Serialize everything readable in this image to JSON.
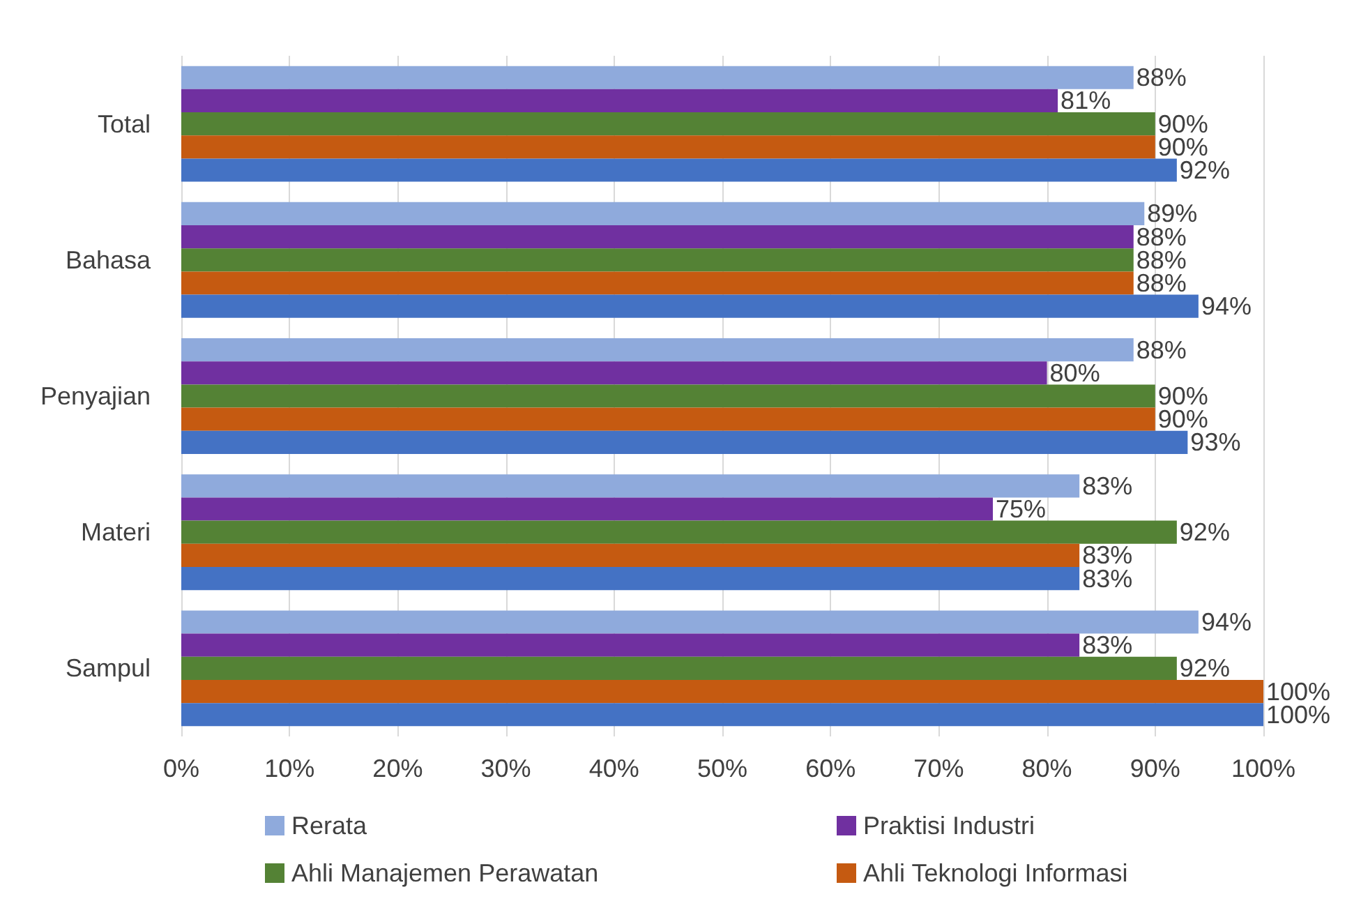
{
  "chart_data": {
    "type": "bar",
    "orientation": "horizontal",
    "categories": [
      "Total",
      "Bahasa",
      "Penyajian",
      "Materi",
      "Sampul"
    ],
    "series": [
      {
        "name": "Rerata",
        "color": "#8faadc",
        "values": [
          88,
          89,
          88,
          83,
          94
        ],
        "value_labels": [
          "88%",
          "89%",
          "88%",
          "83%",
          "94%"
        ]
      },
      {
        "name": "Praktisi Industri",
        "color": "#7030a0",
        "values": [
          81,
          88,
          80,
          75,
          83
        ],
        "value_labels": [
          "81%",
          "88%",
          "80%",
          "75%",
          "83%"
        ]
      },
      {
        "name": "Ahli Manajemen Perawatan",
        "color": "#548235",
        "values": [
          90,
          88,
          90,
          92,
          92
        ],
        "value_labels": [
          "90%",
          "88%",
          "90%",
          "92%",
          "92%"
        ]
      },
      {
        "name": "Ahli Teknologi Informasi",
        "color": "#c55a11",
        "values": [
          90,
          88,
          90,
          83,
          100
        ],
        "value_labels": [
          "90%",
          "88%",
          "90%",
          "83%",
          "100%"
        ]
      },
      {
        "color": "#4472c4",
        "values": [
          92,
          94,
          93,
          83,
          100
        ],
        "value_labels": [
          "92%",
          "94%",
          "93%",
          "83%",
          "100%"
        ]
      }
    ],
    "xlim": [
      0,
      100
    ],
    "xticks": [
      {
        "value": 0,
        "label": "0%"
      },
      {
        "value": 10,
        "label": "10%"
      },
      {
        "value": 20,
        "label": "20%"
      },
      {
        "value": 30,
        "label": "30%"
      },
      {
        "value": 40,
        "label": "40%"
      },
      {
        "value": 50,
        "label": "50%"
      },
      {
        "value": 60,
        "label": "60%"
      },
      {
        "value": 70,
        "label": "70%"
      },
      {
        "value": 80,
        "label": "80%"
      },
      {
        "value": 90,
        "label": "90%"
      },
      {
        "value": 100,
        "label": "100%"
      }
    ],
    "grid": "x",
    "legend": "bottom"
  }
}
